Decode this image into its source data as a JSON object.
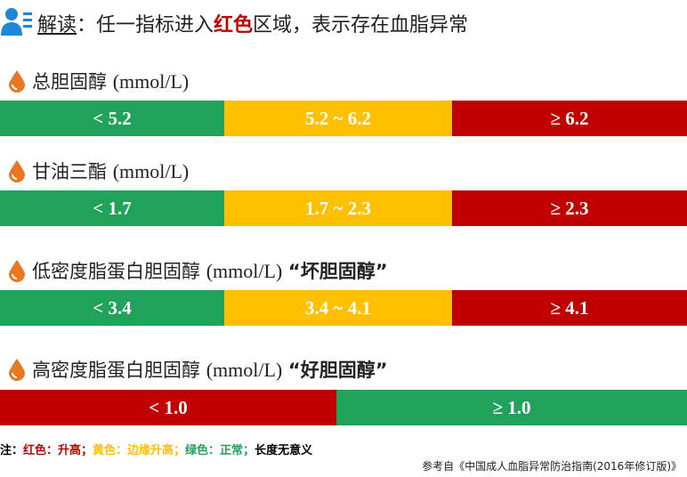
{
  "header": {
    "parts": [
      "解读",
      "：任一指标进入",
      "红色",
      "区域，表示存在血脂异常"
    ]
  },
  "sections": [
    {
      "name": "总胆固醇",
      "unit": "(mmol/L)",
      "segments": [
        "< 5.2",
        "5.2 ~ 6.2",
        "≥ 6.2"
      ]
    },
    {
      "name": "甘油三酯",
      "unit": "(mmol/L)",
      "segments": [
        "< 1.7",
        "1.7 ~ 2.3",
        "≥ 2.3"
      ]
    },
    {
      "name": "低密度脂蛋白胆固醇",
      "unit": "(mmol/L)",
      "tag": "“坏胆固醇”",
      "segments": [
        "< 3.4",
        "3.4 ~ 4.1",
        "≥ 4.1"
      ]
    },
    {
      "name": "高密度脂蛋白胆固醇",
      "unit": "(mmol/L)",
      "tag": "“好胆固醇”",
      "segments": [
        "< 1.0",
        "≥ 1.0"
      ]
    }
  ],
  "note": [
    "注：",
    "红色：升高；",
    "黄色：边缘升高；",
    "绿色：正常；",
    "长度无意义"
  ],
  "source": "参考自《中国成人血脂异常防治指南(2016年修订版)》"
}
